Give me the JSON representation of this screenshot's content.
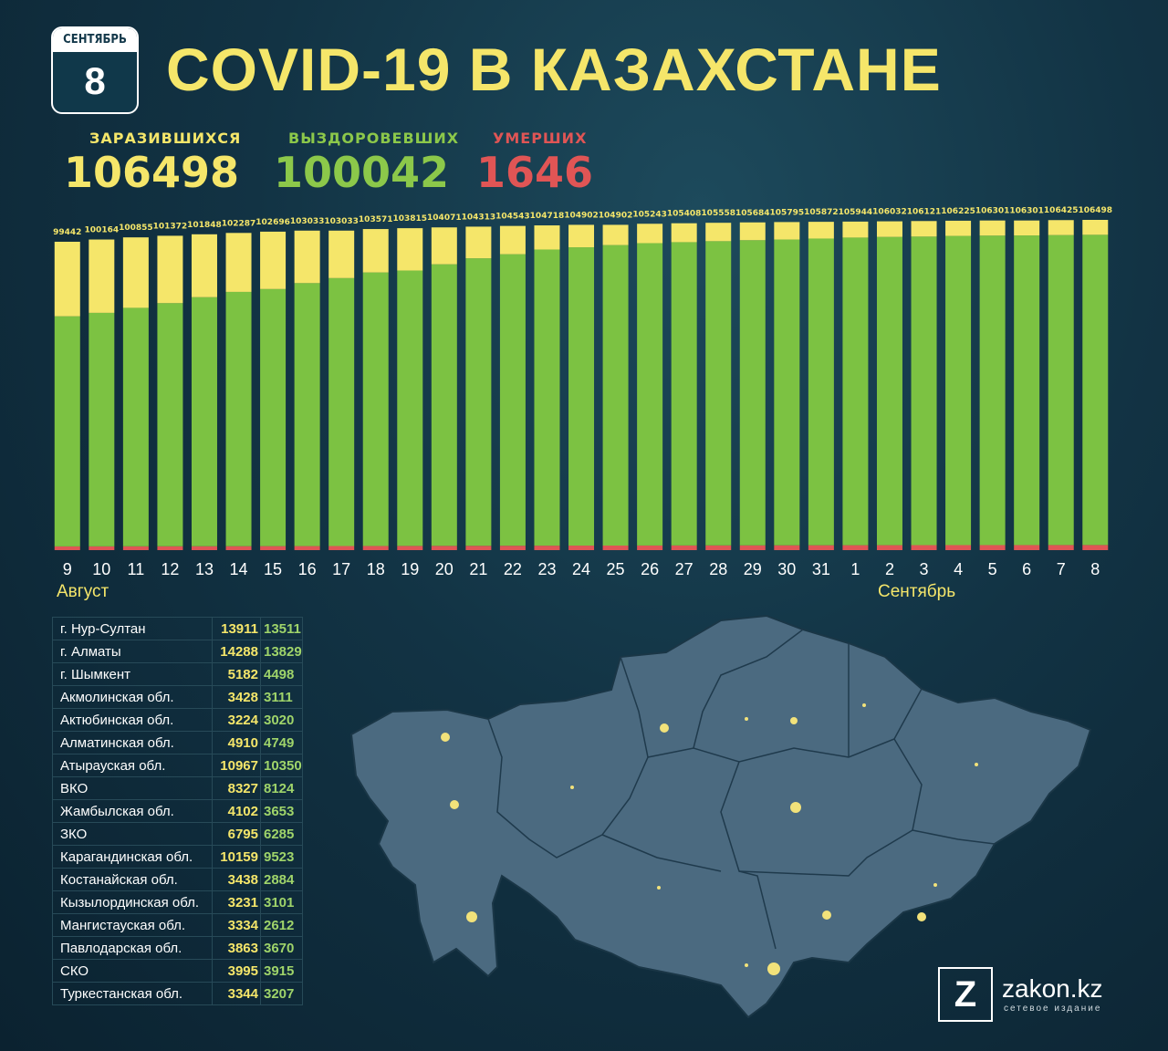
{
  "header": {
    "calendar_month": "СЕНТЯБРЬ",
    "calendar_day": "8",
    "title": "COVID-19 В КАЗАХСТАНЕ"
  },
  "totals": {
    "infected_label": "ЗАРАЗИВШИХСЯ",
    "infected_value": "106498",
    "recovered_label": "ВЫЗДОРОВЕВШИХ",
    "recovered_value": "100042",
    "deaths_label": "УМЕРШИХ",
    "deaths_value": "1646"
  },
  "colors": {
    "infected": "#f5e66a",
    "recovered": "#7cc242",
    "deaths": "#e05555"
  },
  "chart_data": {
    "type": "bar",
    "stacked": true,
    "categories": [
      "9",
      "10",
      "11",
      "12",
      "13",
      "14",
      "15",
      "16",
      "17",
      "18",
      "19",
      "20",
      "21",
      "22",
      "23",
      "24",
      "25",
      "26",
      "27",
      "28",
      "29",
      "30",
      "31",
      "1",
      "2",
      "3",
      "4",
      "5",
      "6",
      "7",
      "8"
    ],
    "category_groups": [
      {
        "label": "Август",
        "start": "9"
      },
      {
        "label": "Сентябрь",
        "start": "1"
      }
    ],
    "totals": [
      99442,
      100164,
      100855,
      101372,
      101848,
      102287,
      102696,
      103033,
      103033,
      103571,
      103815,
      104071,
      104313,
      104543,
      104718,
      104902,
      104902,
      105243,
      105408,
      105558,
      105684,
      105795,
      105872,
      105944,
      106032,
      106121,
      106225,
      106301,
      106301,
      106425,
      106498
    ],
    "series": [
      {
        "color": "#e05555",
        "values": [
          1200,
          1215,
          1230,
          1245,
          1260,
          1275,
          1290,
          1305,
          1320,
          1340,
          1360,
          1380,
          1400,
          1420,
          1440,
          1460,
          1470,
          1490,
          1510,
          1530,
          1545,
          1560,
          1575,
          1590,
          1600,
          1610,
          1620,
          1625,
          1630,
          1640,
          1646
        ]
      },
      {
        "color": "#7cc242",
        "values": [
          74200,
          75300,
          76900,
          78400,
          80300,
          82000,
          82900,
          84800,
          86400,
          88200,
          88800,
          90800,
          92700,
          94000,
          95500,
          96200,
          96900,
          97500,
          97800,
          98100,
          98400,
          98600,
          98900,
          99200,
          99400,
          99500,
          99700,
          99800,
          99850,
          99950,
          100042
        ]
      },
      {
        "color": "#f5e66a",
        "values": [
          24042,
          23649,
          22725,
          21727,
          20288,
          19012,
          18506,
          16928,
          15313,
          14001,
          13655,
          11891,
          10213,
          9123,
          7778,
          7242,
          6532,
          6253,
          6098,
          5928,
          5739,
          5635,
          5397,
          5154,
          5032,
          5011,
          4905,
          4876,
          4821,
          4835,
          4810
        ]
      }
    ]
  },
  "regions": {
    "rows": [
      {
        "name": "г. Нур-Султан",
        "infected": "13911",
        "recovered": "13511"
      },
      {
        "name": "г. Алматы",
        "infected": "14288",
        "recovered": "13829"
      },
      {
        "name": "г. Шымкент",
        "infected": "5182",
        "recovered": "4498"
      },
      {
        "name": "Акмолинская обл.",
        "infected": "3428",
        "recovered": "3111"
      },
      {
        "name": "Актюбинская обл.",
        "infected": "3224",
        "recovered": "3020"
      },
      {
        "name": "Алматинская обл.",
        "infected": "4910",
        "recovered": "4749"
      },
      {
        "name": "Атырауская обл.",
        "infected": "10967",
        "recovered": "10350"
      },
      {
        "name": "ВКО",
        "infected": "8327",
        "recovered": "8124"
      },
      {
        "name": "Жамбылская обл.",
        "infected": "4102",
        "recovered": "3653"
      },
      {
        "name": "ЗКО",
        "infected": "6795",
        "recovered": "6285"
      },
      {
        "name": "Карагандинская обл.",
        "infected": "10159",
        "recovered": "9523"
      },
      {
        "name": "Костанайская обл.",
        "infected": "3438",
        "recovered": "2884"
      },
      {
        "name": "Кызылординская обл.",
        "infected": "3231",
        "recovered": "3101"
      },
      {
        "name": "Мангистауская обл.",
        "infected": "3334",
        "recovered": "2612"
      },
      {
        "name": "Павлодарская обл.",
        "infected": "3863",
        "recovered": "3670"
      },
      {
        "name": "СКО",
        "infected": "3995",
        "recovered": "3915"
      },
      {
        "name": "Туркестанская обл.",
        "infected": "3344",
        "recovered": "3207"
      }
    ]
  },
  "brand": {
    "logo_letter": "Z",
    "name": "zakon.kz",
    "tagline": "сетевое издание"
  }
}
